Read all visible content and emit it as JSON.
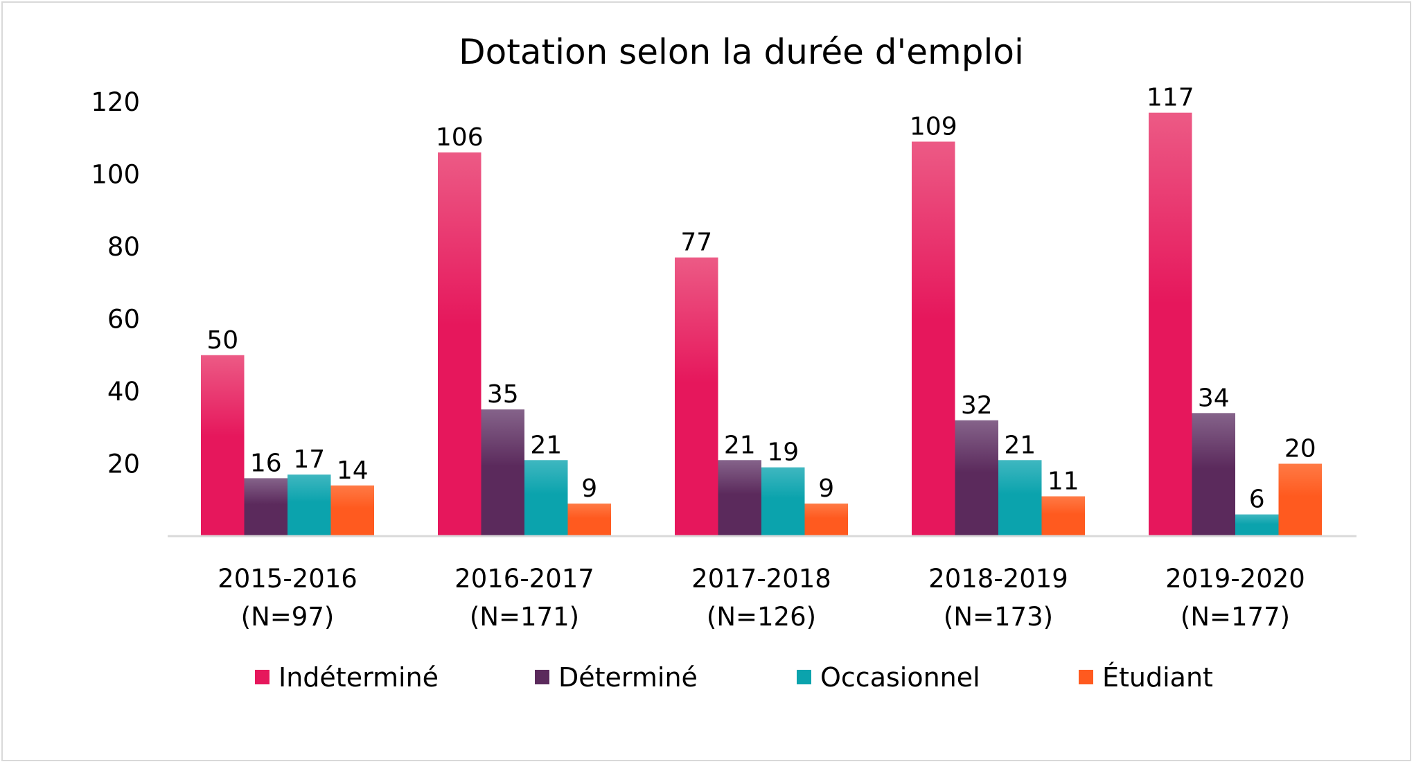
{
  "chart_data": {
    "type": "bar",
    "title": "Dotation selon la durée d'emploi",
    "xlabel": "",
    "ylabel": "",
    "ylim": [
      0,
      120
    ],
    "yticks": [
      20,
      40,
      60,
      80,
      100,
      120
    ],
    "categories": [
      [
        "2015-2016",
        "(N=97)"
      ],
      [
        "2016-2017",
        "(N=171)"
      ],
      [
        "2017-2018",
        "(N=126)"
      ],
      [
        "2018-2019",
        "(N=173)"
      ],
      [
        "2019-2020",
        "(N=177)"
      ]
    ],
    "series": [
      {
        "name": "Indéterminé",
        "values": [
          50,
          106,
          77,
          109,
          117
        ],
        "color": "#e6175c",
        "highlight": "#ec5a85"
      },
      {
        "name": "Déterminé",
        "values": [
          16,
          35,
          21,
          32,
          34
        ],
        "color": "#5b2a5c",
        "highlight": "#85638a"
      },
      {
        "name": "Occasionnel",
        "values": [
          17,
          21,
          19,
          21,
          6
        ],
        "color": "#0ba3ad",
        "highlight": "#3fb7c0"
      },
      {
        "name": "Étudiant",
        "values": [
          14,
          9,
          9,
          11,
          20
        ],
        "color": "#ff5a1f",
        "highlight": "#ff7a45"
      }
    ],
    "legend_position": "bottom",
    "grid": false
  }
}
